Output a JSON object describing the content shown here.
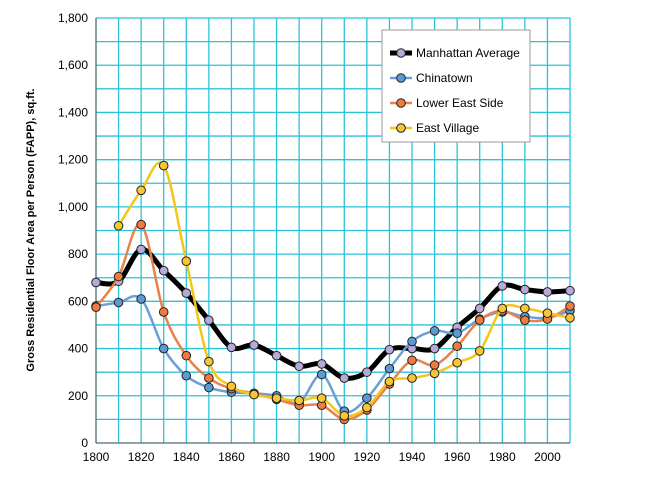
{
  "chart_data": {
    "type": "line",
    "title": "",
    "xlabel": "",
    "ylabel": "Gross Residential Floor Area per Person (FAPP), sq.ft.",
    "xlim": [
      1800,
      2010
    ],
    "ylim": [
      0,
      1800
    ],
    "x_ticks": [
      "1800",
      "1820",
      "1840",
      "1860",
      "1880",
      "1900",
      "1920",
      "1940",
      "1960",
      "1980",
      "2000"
    ],
    "y_ticks": [
      "0",
      "200",
      "400",
      "600",
      "800",
      "1,000",
      "1,200",
      "1,400",
      "1,600",
      "1,800"
    ],
    "grid": true,
    "legend_position": "top-right",
    "series": [
      {
        "name": "Manhattan Average",
        "color": "#000000",
        "marker_color": "#b9a9d9",
        "x": [
          1800,
          1810,
          1820,
          1830,
          1840,
          1850,
          1860,
          1870,
          1880,
          1890,
          1900,
          1910,
          1920,
          1930,
          1940,
          1950,
          1960,
          1970,
          1980,
          1990,
          2000,
          2010
        ],
        "y": [
          680,
          685,
          820,
          730,
          635,
          520,
          405,
          415,
          370,
          325,
          335,
          275,
          300,
          395,
          400,
          400,
          490,
          570,
          665,
          650,
          640,
          645
        ]
      },
      {
        "name": "Chinatown",
        "color": "#6a9fd8",
        "marker_color": "#5b9bd5",
        "x": [
          1800,
          1810,
          1820,
          1830,
          1840,
          1850,
          1860,
          1870,
          1880,
          1890,
          1900,
          1910,
          1920,
          1930,
          1940,
          1950,
          1960,
          1970,
          1980,
          1990,
          2000,
          2010
        ],
        "y": [
          580,
          595,
          610,
          400,
          285,
          235,
          215,
          210,
          200,
          170,
          290,
          135,
          190,
          315,
          430,
          475,
          465,
          525,
          555,
          535,
          530,
          560
        ]
      },
      {
        "name": "Lower East Side",
        "color": "#e8824a",
        "marker_color": "#f07b3f",
        "x": [
          1800,
          1810,
          1820,
          1830,
          1840,
          1850,
          1860,
          1870,
          1880,
          1890,
          1900,
          1910,
          1920,
          1930,
          1940,
          1950,
          1960,
          1970,
          1980,
          1990,
          2000,
          2010
        ],
        "y": [
          575,
          705,
          925,
          555,
          370,
          275,
          230,
          210,
          185,
          160,
          160,
          100,
          140,
          250,
          350,
          330,
          410,
          520,
          560,
          520,
          525,
          580
        ]
      },
      {
        "name": "East Village",
        "color": "#f5c518",
        "marker_color": "#f7c636",
        "x": [
          1810,
          1820,
          1830,
          1840,
          1850,
          1860,
          1870,
          1880,
          1890,
          1900,
          1910,
          1920,
          1930,
          1940,
          1950,
          1960,
          1970,
          1980,
          1990,
          2000,
          2010
        ],
        "y": [
          920,
          1070,
          1175,
          770,
          345,
          240,
          205,
          190,
          180,
          190,
          115,
          150,
          260,
          275,
          295,
          340,
          390,
          570,
          570,
          550,
          530
        ]
      }
    ]
  }
}
